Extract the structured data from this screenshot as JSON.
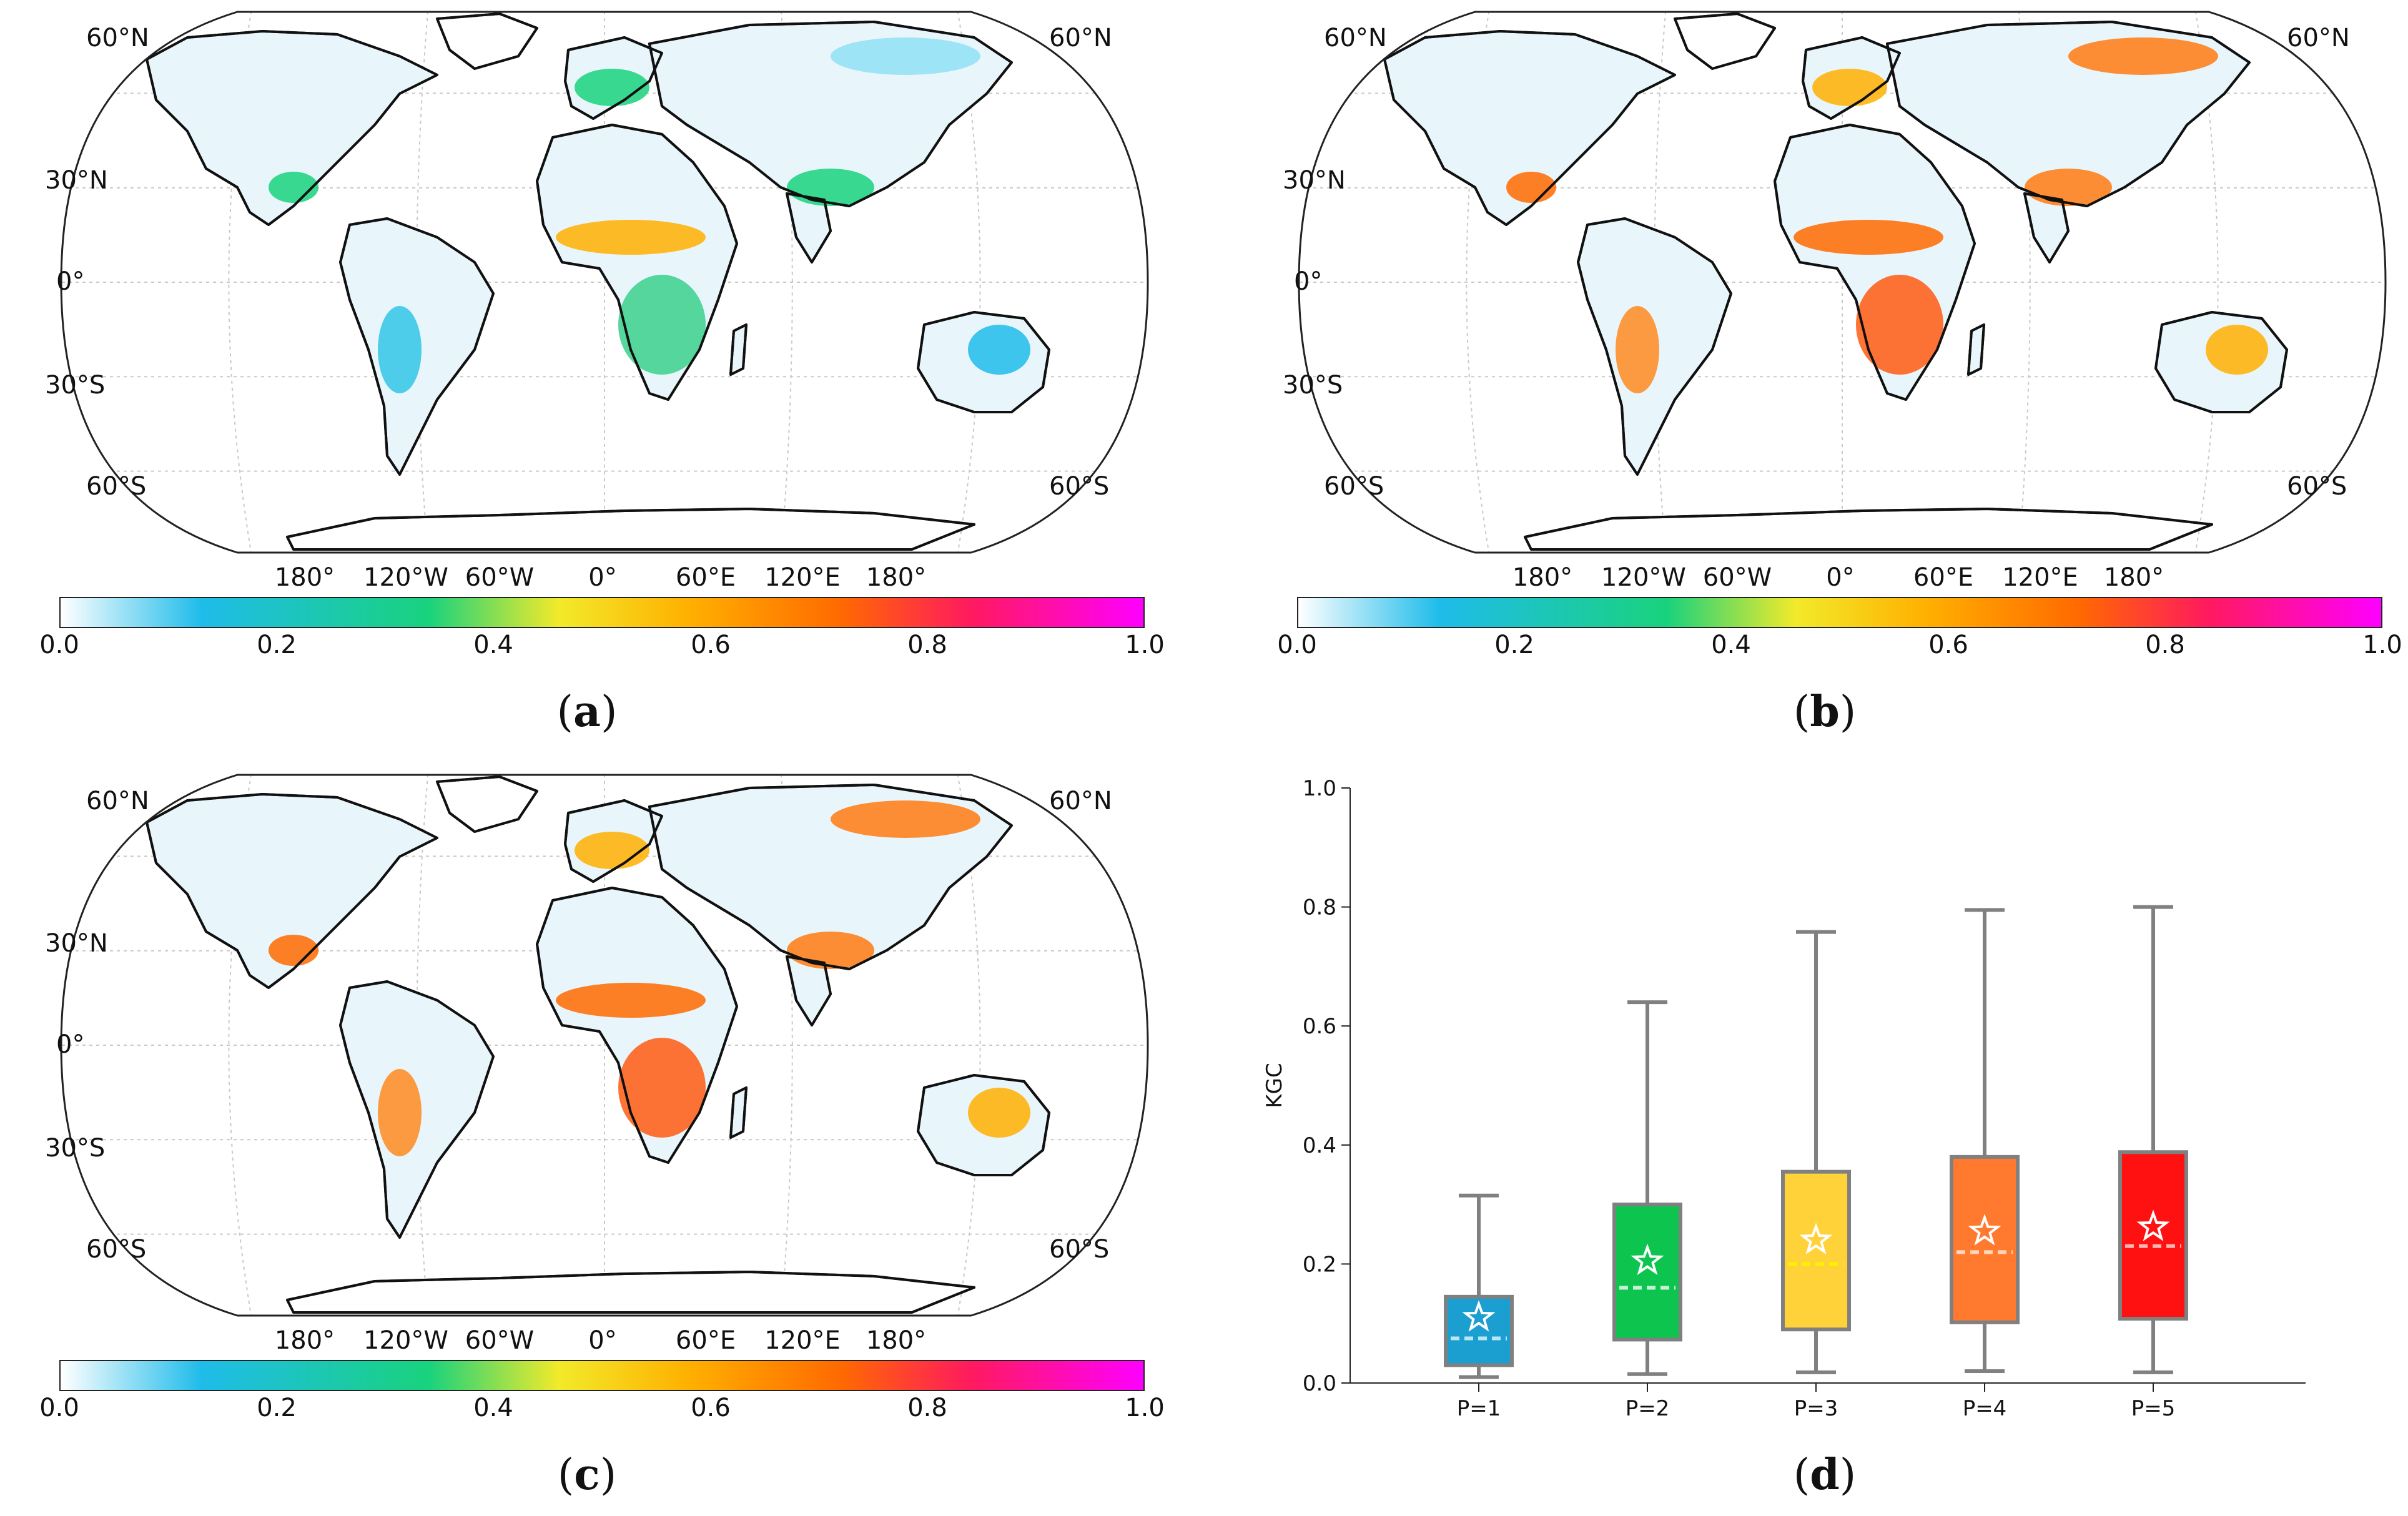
{
  "colorbar": {
    "stops": [
      "#ffffff",
      "#1fbcea",
      "#19d27d",
      "#f2ea2a",
      "#ffb000",
      "#ff6a00",
      "#ff1a5e",
      "#ff00ff"
    ],
    "ticks": [
      "0.0",
      "0.2",
      "0.4",
      "0.6",
      "0.8",
      "1.0"
    ]
  },
  "map_labels": {
    "lat_left": [
      "60°N",
      "30°N",
      "0°",
      "30°S",
      "60°S"
    ],
    "lat_right": [
      "60°N",
      "60°S"
    ],
    "lon": [
      "180°",
      "120°W",
      "60°W",
      "0°",
      "60°E",
      "120°E",
      "180°"
    ]
  },
  "panels": [
    {
      "letter": "a",
      "open": "(",
      "close": ")"
    },
    {
      "letter": "b",
      "open": "(",
      "close": ")"
    },
    {
      "letter": "c",
      "open": "(",
      "close": ")"
    },
    {
      "letter": "d",
      "open": "(",
      "close": ")"
    }
  ],
  "chart_data": {
    "type": "box",
    "ylabel": "KGC",
    "ylim": [
      0.0,
      1.0
    ],
    "yticks": [
      "0.0",
      "0.2",
      "0.4",
      "0.6",
      "0.8",
      "1.0"
    ],
    "categories": [
      "P=1",
      "P=2",
      "P=3",
      "P=4",
      "P=5"
    ],
    "boxes": [
      {
        "category": "P=1",
        "whisker_low": 0.01,
        "q1": 0.03,
        "median": 0.075,
        "q3": 0.145,
        "whisker_high": 0.315,
        "mean": 0.11,
        "color": "#1a9fd0",
        "median_color": "#b9e6f5"
      },
      {
        "category": "P=2",
        "whisker_low": 0.015,
        "q1": 0.073,
        "median": 0.16,
        "q3": 0.3,
        "whisker_high": 0.64,
        "mean": 0.205,
        "color": "#0dc44f",
        "median_color": "#c6f0d3"
      },
      {
        "category": "P=3",
        "whisker_low": 0.018,
        "q1": 0.09,
        "median": 0.2,
        "q3": 0.355,
        "whisker_high": 0.758,
        "mean": 0.24,
        "color": "#ffd23a",
        "median_color": "#fff200"
      },
      {
        "category": "P=4",
        "whisker_low": 0.02,
        "q1": 0.102,
        "median": 0.22,
        "q3": 0.38,
        "whisker_high": 0.795,
        "mean": 0.255,
        "color": "#ff7a2e",
        "median_color": "#ffd6b8"
      },
      {
        "category": "P=5",
        "whisker_low": 0.018,
        "q1": 0.108,
        "median": 0.23,
        "q3": 0.388,
        "whisker_high": 0.8,
        "mean": 0.262,
        "color": "#ff1111",
        "median_color": "#ffb3b3"
      }
    ]
  }
}
